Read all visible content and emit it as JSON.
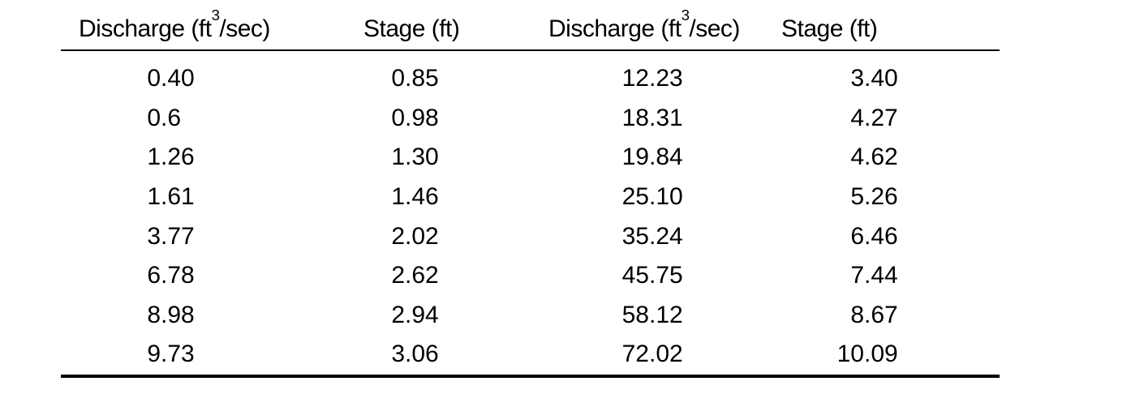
{
  "table": {
    "columns": [
      {
        "label_pre": "Discharge (ft",
        "label_sup": "3",
        "label_post": "/sec)"
      },
      {
        "label_pre": "Stage (ft)",
        "label_sup": "",
        "label_post": ""
      },
      {
        "label_pre": "Discharge (ft",
        "label_sup": "3",
        "label_post": "/sec)"
      },
      {
        "label_pre": "Stage (ft)",
        "label_sup": "",
        "label_post": ""
      }
    ],
    "rows": [
      [
        "0.40",
        "0.85",
        "12.23",
        "3.40"
      ],
      [
        "0.6",
        "0.98",
        "18.31",
        "4.27"
      ],
      [
        "1.26",
        "1.30",
        "19.84",
        "4.62"
      ],
      [
        "1.61",
        "1.46",
        "25.10",
        "5.26"
      ],
      [
        "3.77",
        "2.02",
        "35.24",
        "6.46"
      ],
      [
        "6.78",
        "2.62",
        "45.75",
        "7.44"
      ],
      [
        "8.98",
        "2.94",
        "58.12",
        "8.67"
      ],
      [
        "9.73",
        "3.06",
        "72.02",
        "10.09"
      ]
    ]
  },
  "chart_data": {
    "type": "table",
    "title": "",
    "columns": [
      "Discharge (ft3/sec)",
      "Stage (ft)",
      "Discharge (ft3/sec)",
      "Stage (ft)"
    ],
    "rows": [
      [
        0.4,
        0.85,
        12.23,
        3.4
      ],
      [
        0.6,
        0.98,
        18.31,
        4.27
      ],
      [
        1.26,
        1.3,
        19.84,
        4.62
      ],
      [
        1.61,
        1.46,
        25.1,
        5.26
      ],
      [
        3.77,
        2.02,
        35.24,
        6.46
      ],
      [
        6.78,
        2.62,
        45.75,
        7.44
      ],
      [
        8.98,
        2.94,
        58.12,
        8.67
      ],
      [
        9.73,
        3.06,
        72.02,
        10.09
      ]
    ],
    "series": [
      {
        "name": "Discharge (ft3/sec)",
        "values": [
          0.4,
          0.6,
          1.26,
          1.61,
          3.77,
          6.78,
          8.98,
          9.73,
          12.23,
          18.31,
          19.84,
          25.1,
          35.24,
          45.75,
          58.12,
          72.02
        ]
      },
      {
        "name": "Stage (ft)",
        "values": [
          0.85,
          0.98,
          1.3,
          1.46,
          2.02,
          2.62,
          2.94,
          3.06,
          3.4,
          4.27,
          4.62,
          5.26,
          6.46,
          7.44,
          8.67,
          10.09
        ]
      }
    ],
    "layout": {
      "header_rule": "thin",
      "bottom_rule": "thick",
      "grid": false
    }
  }
}
